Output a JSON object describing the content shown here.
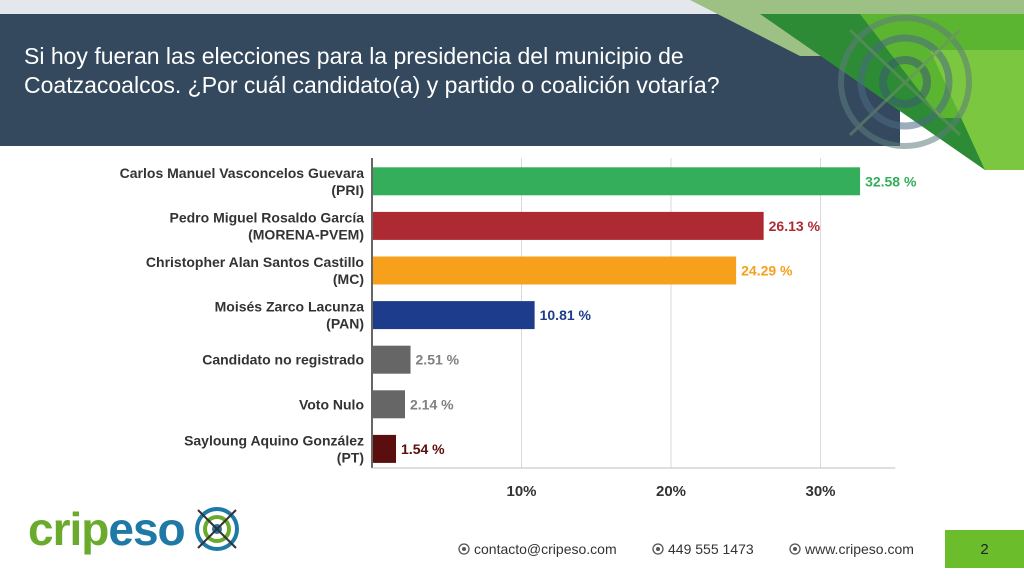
{
  "header": {
    "title": "Si hoy fueran las elecciones para la presidencia del municipio de Coatzacoalcos. ¿Por cuál candidato(a) y partido o coalición votaría?"
  },
  "chart_data": {
    "type": "bar",
    "orientation": "horizontal",
    "categories": [
      [
        "Carlos Manuel Vasconcelos Guevara",
        "(PRI)"
      ],
      [
        "Pedro Miguel Rosaldo García",
        "(MORENA-PVEM)"
      ],
      [
        "Christopher Alan Santos Castillo",
        "(MC)"
      ],
      [
        "Moisés Zarco Lacunza",
        "(PAN)"
      ],
      [
        "Candidato no registrado"
      ],
      [
        "Voto Nulo"
      ],
      [
        "Sayloung Aquino González",
        "(PT)"
      ]
    ],
    "values": [
      32.58,
      26.13,
      24.29,
      10.81,
      2.51,
      2.14,
      1.54
    ],
    "value_labels": [
      "32.58 %",
      "26.13 %",
      "24.29 %",
      "10.81 %",
      "2.51 %",
      "2.14 %",
      "1.54 %"
    ],
    "colors": [
      "#34ae5b",
      "#ad2a33",
      "#f6a01c",
      "#1d3c8c",
      "#666666",
      "#666666",
      "#5b0e0e"
    ],
    "label_colors": [
      "#34ae5b",
      "#ad2a33",
      "#f6a01c",
      "#1d3c8c",
      "#808080",
      "#808080",
      "#5b0e0e"
    ],
    "xticks": [
      10,
      20,
      30
    ],
    "xtick_labels": [
      "10%",
      "20%",
      "30%"
    ],
    "xlim": [
      0,
      35
    ],
    "grid": true,
    "title": "",
    "xlabel": "",
    "ylabel": ""
  },
  "footer": {
    "logo_text_1": "crip",
    "logo_text_2": "eso",
    "email": "contacto@cripeso.com",
    "phone": "449 555 1473",
    "website": "www.cripeso.com",
    "page_number": "2"
  },
  "icons": {
    "email": "globe-icon",
    "phone": "globe-icon",
    "website": "globe-icon",
    "logo": "target-icon"
  }
}
